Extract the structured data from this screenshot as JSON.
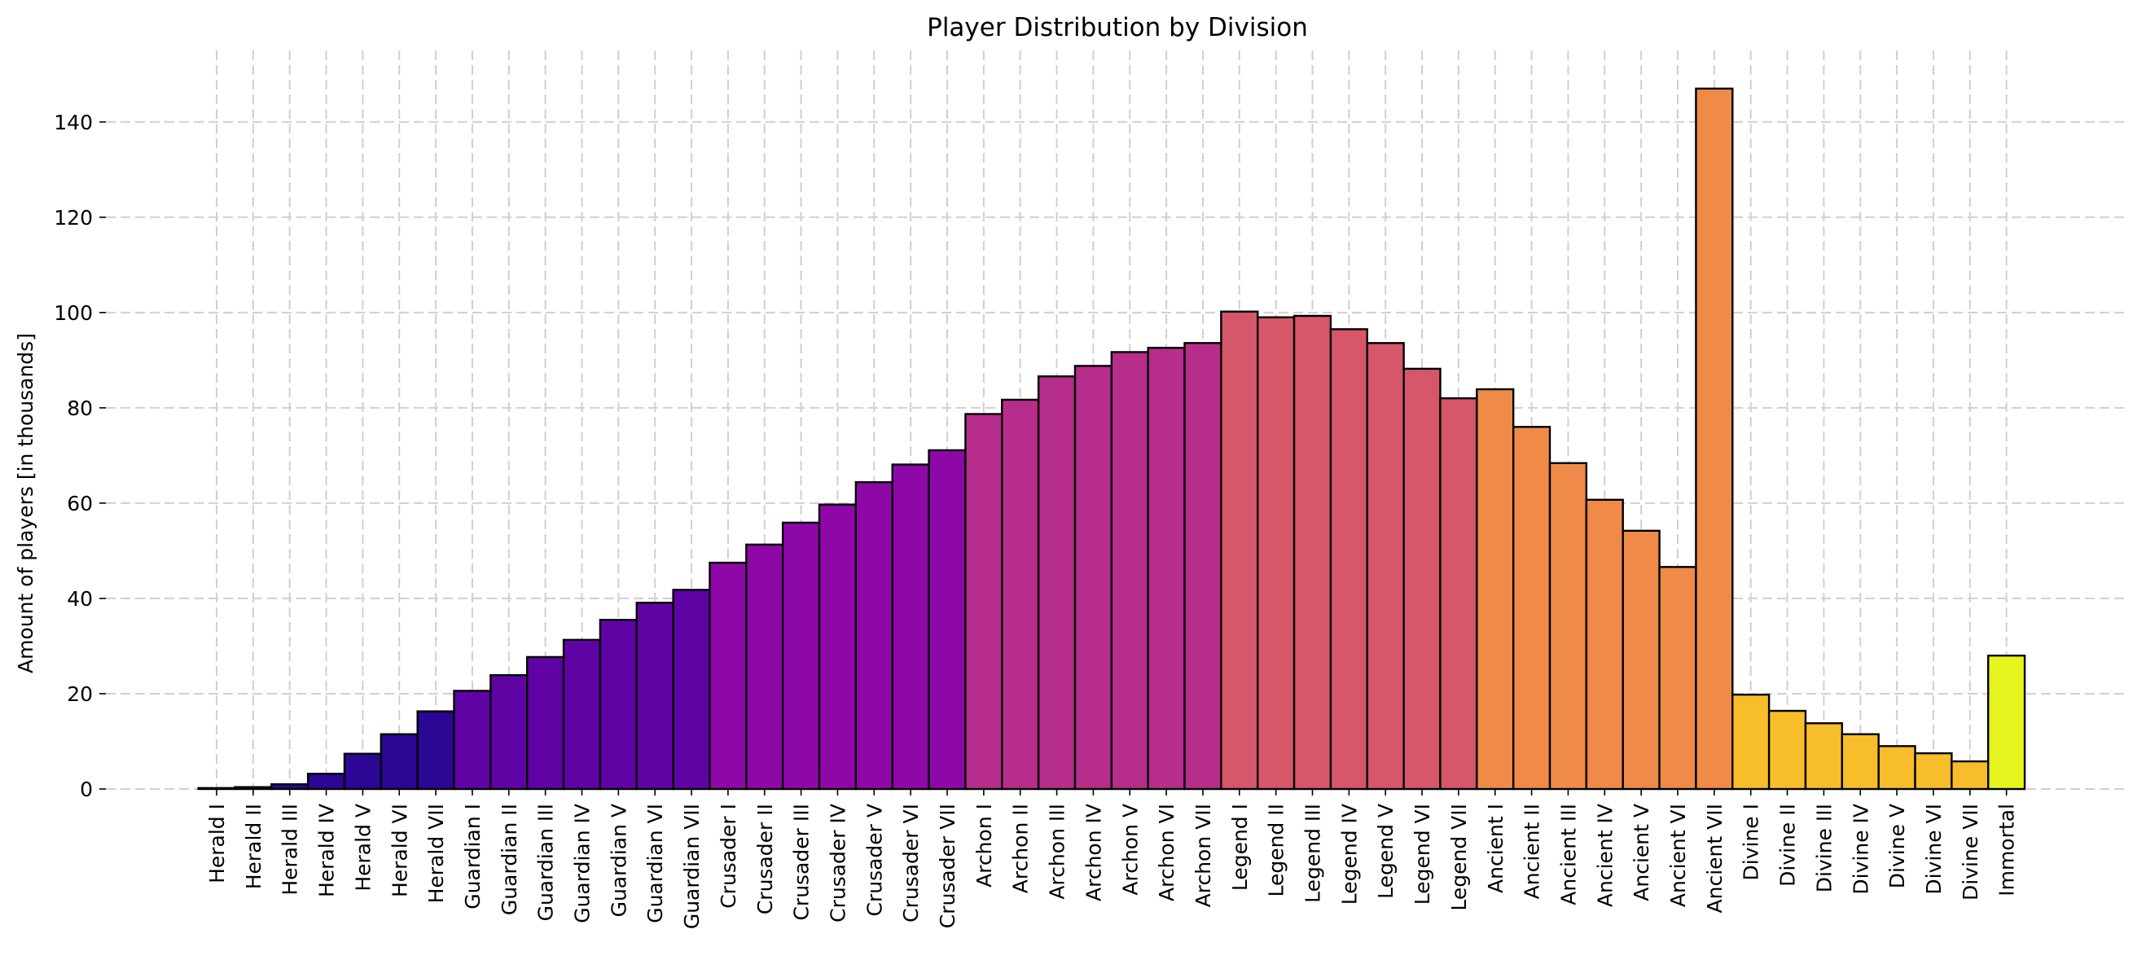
{
  "chart_data": {
    "type": "bar",
    "title": "Player Distribution by Division",
    "xlabel": "",
    "ylabel": "Amount of players [in thousands]",
    "ylim": [
      0,
      155
    ],
    "yticks": [
      0,
      20,
      40,
      60,
      80,
      100,
      120,
      140
    ],
    "grid": true,
    "categories": [
      "Herald I",
      "Herald II",
      "Herald III",
      "Herald IV",
      "Herald V",
      "Herald VI",
      "Herald VII",
      "Guardian I",
      "Guardian II",
      "Guardian III",
      "Guardian IV",
      "Guardian V",
      "Guardian VI",
      "Guardian VII",
      "Crusader I",
      "Crusader II",
      "Crusader III",
      "Crusader IV",
      "Crusader V",
      "Crusader VI",
      "Crusader VII",
      "Archon I",
      "Archon II",
      "Archon III",
      "Archon IV",
      "Archon V",
      "Archon VI",
      "Archon VII",
      "Legend I",
      "Legend II",
      "Legend III",
      "Legend IV",
      "Legend V",
      "Legend VI",
      "Legend VII",
      "Ancient I",
      "Ancient II",
      "Ancient III",
      "Ancient IV",
      "Ancient V",
      "Ancient VI",
      "Ancient VII",
      "Divine I",
      "Divine II",
      "Divine III",
      "Divine IV",
      "Divine V",
      "Divine VI",
      "Divine VII",
      "Immortal"
    ],
    "values": [
      0.2,
      0.4,
      1.0,
      3.2,
      7.4,
      11.5,
      16.3,
      20.6,
      23.9,
      27.7,
      31.3,
      35.5,
      39.1,
      41.8,
      47.5,
      51.3,
      55.9,
      59.7,
      64.4,
      68.1,
      71.1,
      78.7,
      81.7,
      86.6,
      88.8,
      91.7,
      92.6,
      93.6,
      100.2,
      99.0,
      99.3,
      96.5,
      93.6,
      88.2,
      82.0,
      83.9,
      76.0,
      68.4,
      60.7,
      54.2,
      46.6,
      147.0,
      19.8,
      16.4,
      13.8,
      11.5,
      9.0,
      7.5,
      5.8,
      28.0
    ],
    "colors": [
      "#2c0694",
      "#2c0694",
      "#2c0694",
      "#2c0694",
      "#2c0694",
      "#2c0694",
      "#2c0694",
      "#6003a5",
      "#6003a5",
      "#6003a5",
      "#6003a5",
      "#6003a5",
      "#6003a5",
      "#6003a5",
      "#8e08a8",
      "#8e08a8",
      "#8e08a8",
      "#8e08a8",
      "#8e08a8",
      "#8e08a8",
      "#8e08a8",
      "#b62d8b",
      "#b62d8b",
      "#b62d8b",
      "#b62d8b",
      "#b62d8b",
      "#b62d8b",
      "#b62d8b",
      "#d6566a",
      "#d6566a",
      "#d6566a",
      "#d6566a",
      "#d6566a",
      "#d6566a",
      "#d6566a",
      "#ef8a48",
      "#ef8a48",
      "#ef8a48",
      "#ef8a48",
      "#ef8a48",
      "#ef8a48",
      "#ef8a48",
      "#f8bd2a",
      "#f8bd2a",
      "#f8bd2a",
      "#f8bd2a",
      "#f8bd2a",
      "#f8bd2a",
      "#f8bd2a",
      "#e6f51e"
    ]
  }
}
